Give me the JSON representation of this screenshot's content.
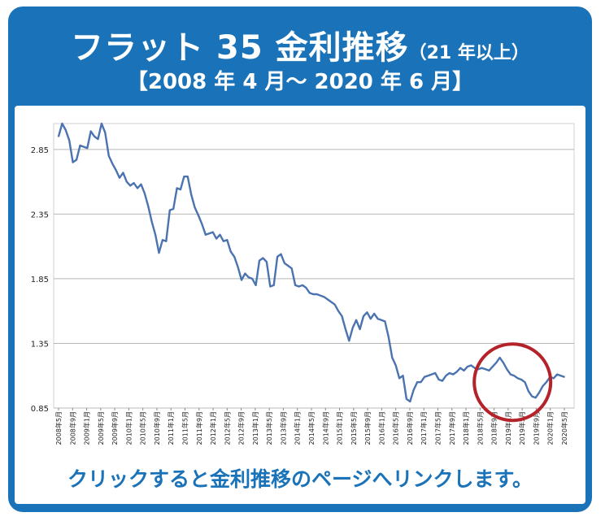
{
  "header": {
    "title": "フラット 35 金利推移",
    "title_suffix": "（21 年以上）",
    "subtitle": "【2008 年 4 月～ 2020 年 6 月】"
  },
  "link_text": "クリックすると金利推移のページへリンクします。",
  "colors": {
    "brand": "#1a73b8",
    "line": "#4a73b0",
    "highlight_circle": "#b5232a",
    "grid": "#b8b8b8"
  },
  "chart_data": {
    "type": "line",
    "title": "",
    "xlabel": "",
    "ylabel": "",
    "ylim": [
      0.85,
      3.05
    ],
    "y_ticks": [
      0.85,
      1.35,
      1.85,
      2.35,
      2.85
    ],
    "y_tick_labels": [
      "0.85",
      "1.35",
      "1.85",
      "2.35",
      "2.85"
    ],
    "grid": true,
    "legend": "none",
    "x_tick_labels": [
      "2008年5月",
      "2008年9月",
      "2009年1月",
      "2009年5月",
      "2009年9月",
      "2010年1月",
      "2010年5月",
      "2010年9月",
      "2011年1月",
      "2011年5月",
      "2011年9月",
      "2012年1月",
      "2012年5月",
      "2012年9月",
      "2013年1月",
      "2013年5月",
      "2013年9月",
      "2014年1月",
      "2014年5月",
      "2014年9月",
      "2015年1月",
      "2015年5月",
      "2015年9月",
      "2016年1月",
      "2016年5月",
      "2016年9月",
      "2017年1月",
      "2017年5月",
      "2017年9月",
      "2018年1月",
      "2018年5月",
      "2018年9月",
      "2019年1月",
      "2019年5月",
      "2019年9月",
      "2020年1月",
      "2020年5月"
    ],
    "series": [
      {
        "values": [
          2.95,
          3.05,
          3.0,
          2.92,
          2.75,
          2.77,
          2.88,
          2.87,
          2.86,
          2.99,
          2.95,
          2.93,
          3.05,
          2.98,
          2.8,
          2.74,
          2.69,
          2.63,
          2.67,
          2.6,
          2.57,
          2.59,
          2.55,
          2.58,
          2.51,
          2.41,
          2.29,
          2.19,
          2.05,
          2.15,
          2.14,
          2.38,
          2.39,
          2.55,
          2.54,
          2.64,
          2.64,
          2.5,
          2.4,
          2.34,
          2.27,
          2.19,
          2.2,
          2.21,
          2.16,
          2.19,
          2.14,
          2.15,
          2.06,
          2.02,
          1.94,
          1.84,
          1.89,
          1.86,
          1.85,
          1.8,
          1.99,
          2.01,
          1.98,
          1.79,
          1.8,
          2.02,
          2.04,
          1.97,
          1.95,
          1.93,
          1.8,
          1.79,
          1.8,
          1.78,
          1.74,
          1.73,
          1.73,
          1.72,
          1.71,
          1.69,
          1.67,
          1.65,
          1.6,
          1.56,
          1.46,
          1.37,
          1.47,
          1.53,
          1.46,
          1.56,
          1.59,
          1.54,
          1.58,
          1.54,
          1.53,
          1.52,
          1.4,
          1.24,
          1.18,
          1.08,
          1.1,
          0.92,
          0.9,
          0.99,
          1.05,
          1.05,
          1.09,
          1.1,
          1.11,
          1.12,
          1.07,
          1.06,
          1.1,
          1.12,
          1.11,
          1.13,
          1.16,
          1.14,
          1.17,
          1.18,
          1.16,
          1.15,
          1.16,
          1.15,
          1.14,
          1.17,
          1.2,
          1.24,
          1.2,
          1.15,
          1.11,
          1.1,
          1.08,
          1.07,
          1.05,
          0.98,
          0.94,
          0.93,
          0.97,
          1.02,
          1.05,
          1.09,
          1.08,
          1.11,
          1.1,
          1.09
        ]
      }
    ]
  }
}
